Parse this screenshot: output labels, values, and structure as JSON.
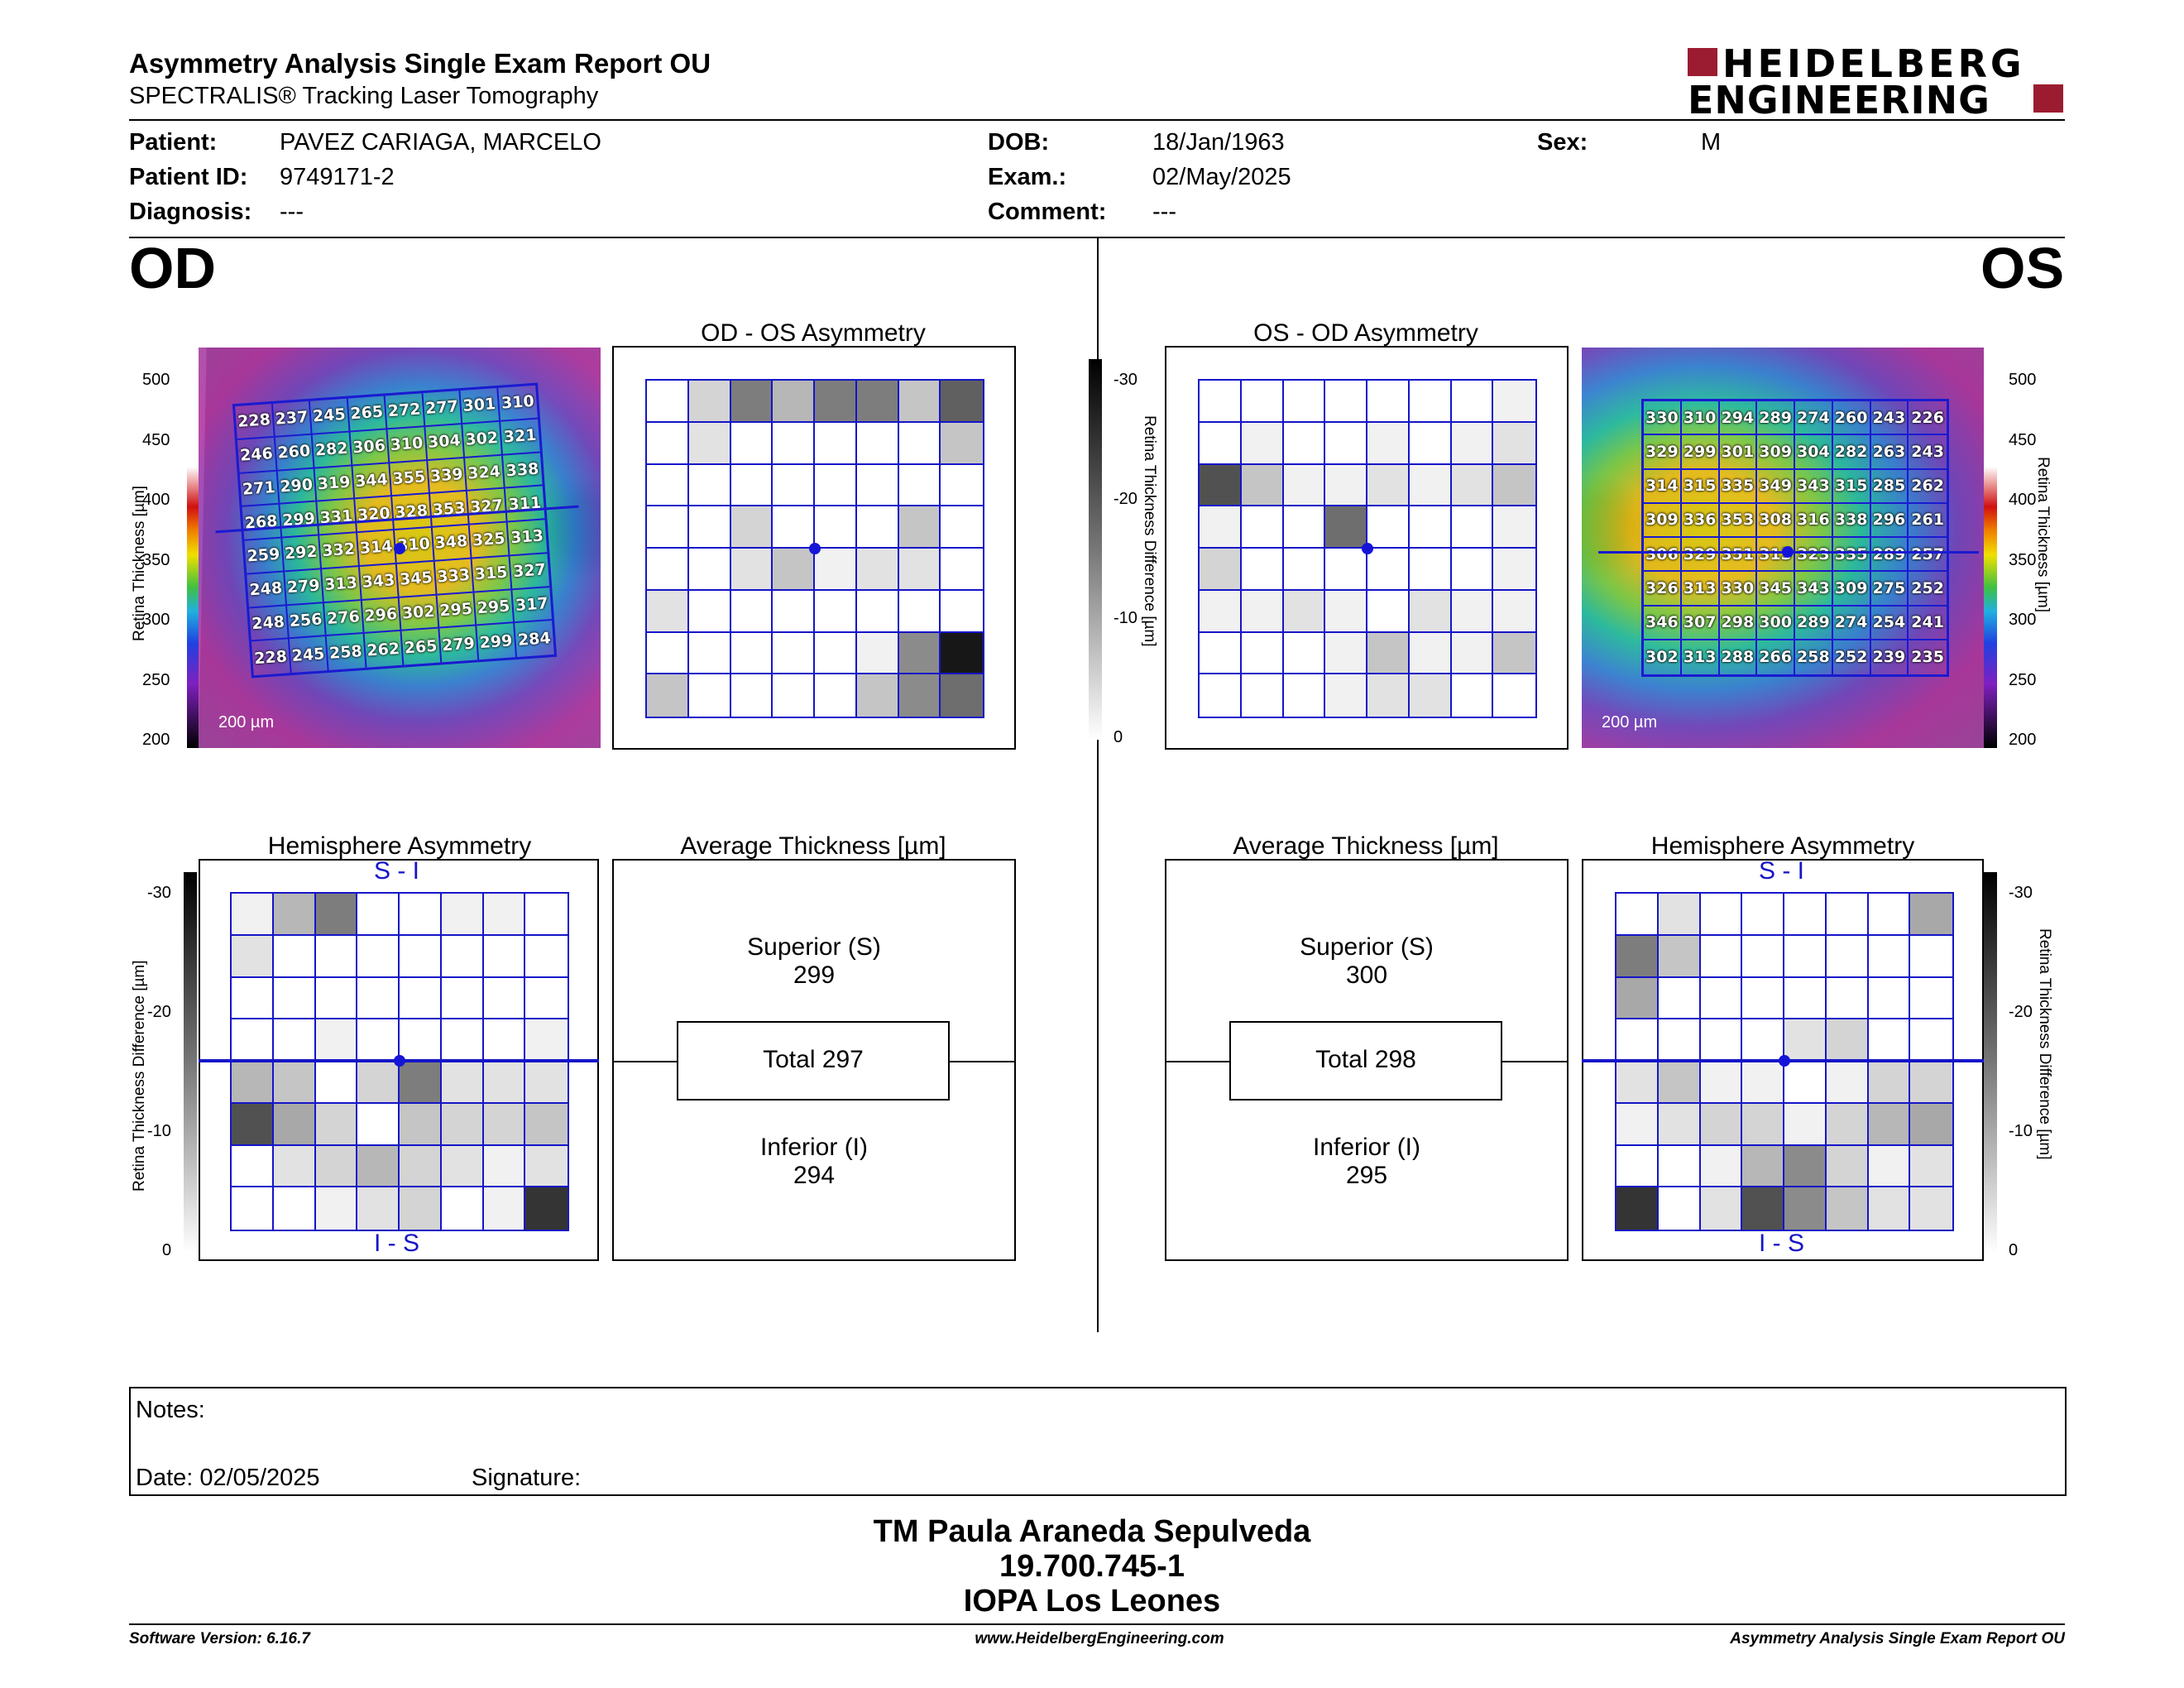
{
  "header": {
    "title": "Asymmetry Analysis Single Exam Report OU",
    "subtitle": "SPECTRALIS® Tracking Laser Tomography",
    "brand_line1": "HEIDELBERG",
    "brand_line2": "ENGINEERING",
    "brand_color": "#9b1c30"
  },
  "patient": {
    "patient_label": "Patient:",
    "patient_value": "PAVEZ CARIAGA, MARCELO",
    "id_label": "Patient ID:",
    "id_value": "9749171-2",
    "diagnosis_label": "Diagnosis:",
    "diagnosis_value": "---",
    "dob_label": "DOB:",
    "dob_value": "18/Jan/1963",
    "exam_label": "Exam.:",
    "exam_value": "02/May/2025",
    "comment_label": "Comment:",
    "comment_value": "---",
    "sex_label": "Sex:",
    "sex_value": "M"
  },
  "od": {
    "eye_label": "OD",
    "asym_title": "OD - OS Asymmetry",
    "hemi_title": "Hemisphere Asymmetry",
    "hemi_top": "S - I",
    "hemi_bottom": "I - S",
    "avg_title": "Average Thickness [µm]",
    "superior_label": "Superior (S)",
    "superior_value": "299",
    "total_label": "Total 297",
    "inferior_label": "Inferior (I)",
    "inferior_value": "294",
    "scale_bar": "200 µm",
    "thickness": [
      [
        228,
        237,
        245,
        265,
        272,
        277,
        301,
        310
      ],
      [
        246,
        260,
        282,
        306,
        310,
        304,
        302,
        321
      ],
      [
        271,
        290,
        319,
        344,
        355,
        339,
        324,
        338
      ],
      [
        268,
        299,
        331,
        320,
        328,
        353,
        327,
        311
      ],
      [
        259,
        292,
        332,
        314,
        310,
        348,
        325,
        313
      ],
      [
        248,
        279,
        313,
        343,
        345,
        333,
        315,
        327
      ],
      [
        248,
        256,
        276,
        296,
        302,
        295,
        295,
        317
      ],
      [
        228,
        245,
        258,
        262,
        265,
        279,
        299,
        284
      ]
    ],
    "asym_gray": [
      [
        0,
        3,
        9,
        5,
        9,
        9,
        4,
        11
      ],
      [
        0,
        2,
        0,
        0,
        0,
        0,
        0,
        4
      ],
      [
        0,
        0,
        0,
        0,
        0,
        0,
        0,
        0
      ],
      [
        0,
        0,
        3,
        0,
        0,
        0,
        4,
        0
      ],
      [
        0,
        0,
        2,
        4,
        1,
        2,
        2,
        0
      ],
      [
        2,
        0,
        0,
        0,
        0,
        0,
        0,
        0
      ],
      [
        0,
        0,
        0,
        0,
        0,
        1,
        8,
        16
      ],
      [
        4,
        0,
        0,
        0,
        0,
        4,
        8,
        10
      ]
    ],
    "hemi_gray": [
      [
        1,
        5,
        9,
        0,
        0,
        1,
        1,
        0
      ],
      [
        2,
        0,
        0,
        0,
        0,
        0,
        0,
        0
      ],
      [
        0,
        0,
        0,
        0,
        0,
        0,
        0,
        0
      ],
      [
        0,
        0,
        1,
        0,
        0,
        0,
        0,
        1
      ],
      [
        5,
        4,
        0,
        3,
        9,
        2,
        2,
        2
      ],
      [
        12,
        6,
        3,
        0,
        4,
        3,
        3,
        4
      ],
      [
        0,
        2,
        3,
        5,
        3,
        2,
        1,
        2
      ],
      [
        0,
        0,
        1,
        2,
        3,
        0,
        1,
        14
      ]
    ]
  },
  "os": {
    "eye_label": "OS",
    "asym_title": "OS - OD Asymmetry",
    "hemi_title": "Hemisphere Asymmetry",
    "hemi_top": "S - I",
    "hemi_bottom": "I - S",
    "avg_title": "Average Thickness [µm]",
    "superior_label": "Superior (S)",
    "superior_value": "300",
    "total_label": "Total 298",
    "inferior_label": "Inferior (I)",
    "inferior_value": "295",
    "scale_bar": "200 µm",
    "thickness": [
      [
        330,
        310,
        294,
        289,
        274,
        260,
        243,
        226
      ],
      [
        329,
        299,
        301,
        309,
        304,
        282,
        263,
        243
      ],
      [
        314,
        315,
        335,
        349,
        343,
        315,
        285,
        262
      ],
      [
        309,
        336,
        353,
        308,
        316,
        338,
        296,
        261
      ],
      [
        306,
        329,
        351,
        313,
        323,
        335,
        289,
        257
      ],
      [
        326,
        313,
        330,
        345,
        343,
        309,
        275,
        252
      ],
      [
        346,
        307,
        298,
        300,
        289,
        274,
        254,
        241
      ],
      [
        302,
        313,
        288,
        266,
        258,
        252,
        239,
        235
      ]
    ],
    "asym_gray": [
      [
        0,
        0,
        0,
        0,
        0,
        0,
        0,
        1
      ],
      [
        0,
        1,
        0,
        0,
        1,
        0,
        1,
        2
      ],
      [
        12,
        4,
        1,
        1,
        2,
        1,
        2,
        4
      ],
      [
        1,
        0,
        0,
        10,
        0,
        0,
        0,
        1
      ],
      [
        3,
        0,
        0,
        0,
        0,
        0,
        0,
        1
      ],
      [
        1,
        1,
        2,
        1,
        0,
        2,
        1,
        1
      ],
      [
        0,
        0,
        0,
        1,
        4,
        1,
        1,
        4
      ],
      [
        0,
        0,
        0,
        1,
        2,
        2,
        0,
        0
      ]
    ],
    "hemi_gray": [
      [
        0,
        2,
        0,
        0,
        0,
        0,
        0,
        6
      ],
      [
        9,
        4,
        0,
        0,
        0,
        0,
        0,
        0
      ],
      [
        6,
        0,
        0,
        0,
        0,
        0,
        0,
        0
      ],
      [
        0,
        0,
        0,
        0,
        2,
        3,
        0,
        0
      ],
      [
        2,
        4,
        1,
        1,
        0,
        1,
        3,
        3
      ],
      [
        1,
        2,
        3,
        3,
        1,
        3,
        5,
        6
      ],
      [
        0,
        0,
        1,
        5,
        8,
        3,
        1,
        2
      ],
      [
        14,
        0,
        2,
        12,
        8,
        4,
        2,
        2
      ]
    ]
  },
  "thickness_scale": {
    "ticks": [
      "500",
      "450",
      "400",
      "350",
      "300",
      "250",
      "200"
    ],
    "label": "Retina Thickness [µm]"
  },
  "diff_scale": {
    "ticks": [
      "-30",
      "-20",
      "-10",
      "0"
    ],
    "label": "Retina Thickness Difference [µm]"
  },
  "notes": {
    "notes_label": "Notes:",
    "date_label": "Date: 02/05/2025",
    "signature_label": "Signature:"
  },
  "signer": {
    "name": "TM Paula Araneda Sepulveda",
    "rut": "19.700.745-1",
    "institution": "IOPA Los Leones"
  },
  "footer": {
    "version": "Software Version: 6.16.7",
    "website": "www.HeidelbergEngineering.com",
    "report_name": "Asymmetry Analysis Single Exam Report OU"
  }
}
